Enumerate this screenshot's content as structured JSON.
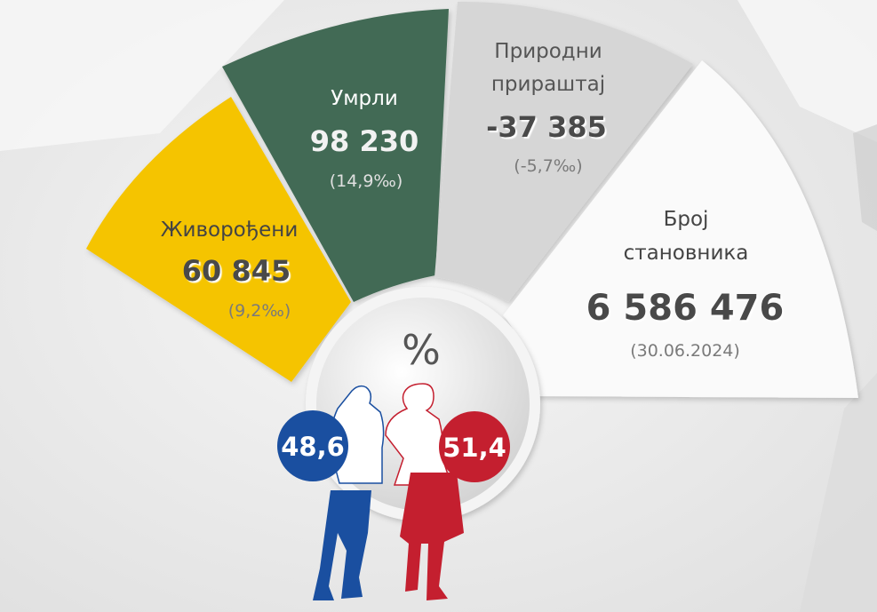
{
  "segments": {
    "births": {
      "label": "Живорођени",
      "value": "60 845",
      "rate": "(9,2‰)",
      "color": "#f5c400"
    },
    "deaths": {
      "label": "Умрли",
      "value": "98 230",
      "rate": "(14,9‰)",
      "color": "#436b54"
    },
    "natural_increase": {
      "label_line1": "Природни",
      "label_line2": "прираштај",
      "value": "-37 385",
      "rate": "(-5,7‰)",
      "color": "#d6d6d6"
    },
    "population": {
      "label_line1": "Број",
      "label_line2": "становника",
      "value": "6 586 476",
      "date": "(30.06.2024)",
      "color": "#fafafa"
    }
  },
  "gender": {
    "symbol": "%",
    "male_percent": "48,6",
    "female_percent": "51,4",
    "male_color": "#1a4fa0",
    "female_color": "#c41f2f"
  }
}
